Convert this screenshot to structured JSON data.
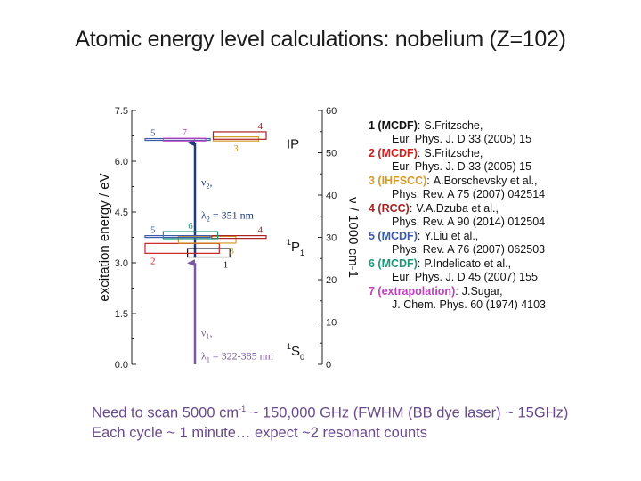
{
  "title": "Atomic energy level calculations: nobelium (Z=102)",
  "chart_data": {
    "type": "energy-level-diagram",
    "ylabel_left": "excitation energy / eV",
    "ylabel_right": "ν / 1000 cm-1",
    "ylim_left": [
      0,
      7.5
    ],
    "ylim_right": [
      0,
      60
    ],
    "left_ticks": [
      "0.0",
      "1.5",
      "3.0",
      "4.5",
      "6.0",
      "7.5"
    ],
    "right_ticks": [
      "0",
      "10",
      "20",
      "30",
      "40",
      "50",
      "60"
    ],
    "states": [
      {
        "label": "1S0",
        "main": "S",
        "sup": "1",
        "sub": "0",
        "energy_eV": 0.0
      },
      {
        "label": "1P1",
        "main": "P",
        "sup": "1",
        "sub": "1",
        "energy_eV": 3.5
      },
      {
        "label": "IP",
        "main": "IP",
        "sup": "",
        "sub": "",
        "energy_eV": 6.65
      }
    ],
    "transitions": [
      {
        "name": "ν1",
        "base": "ν",
        "sub": "1",
        "wl_label": "λ1 = 322-385 nm",
        "wl_base": "λ",
        "wl_value": " = 322-385 nm",
        "from_eV": 0.0,
        "to_eV": 3.1,
        "color": "#7a5a9c"
      },
      {
        "name": "ν2",
        "base": "ν",
        "sub": "2",
        "wl_label": "λ2 = 351 nm",
        "wl_base": "λ",
        "wl_value": " = 351 nm",
        "from_eV": 3.1,
        "to_eV": 6.65,
        "color": "#1f3a7a"
      }
    ],
    "p1_calcs": [
      {
        "id": "1",
        "color": "#111111",
        "e_low": 3.17,
        "e_high": 3.42,
        "x0": 2.8,
        "x1": 5.6,
        "label_pos": "below-right"
      },
      {
        "id": "2",
        "color": "#cc2222",
        "e_low": 3.28,
        "e_high": 3.57,
        "x0": 0.0,
        "x1": 4.9,
        "label_pos": "below-left"
      },
      {
        "id": "3",
        "color": "#d49a2a",
        "e_low": 3.58,
        "e_high": 3.78,
        "x0": 2.2,
        "x1": 6.0,
        "label_pos": "below-right"
      },
      {
        "id": "4",
        "color": "#aa2222",
        "e_low": 3.72,
        "e_high": 3.8,
        "x0": 4.4,
        "x1": 8.0,
        "label_pos": "above-right"
      },
      {
        "id": "5",
        "color": "#3a5aaa",
        "e_low": 3.78,
        "e_high": 3.8,
        "x0": 0.0,
        "x1": 4.3,
        "label_pos": "above-left"
      },
      {
        "id": "6",
        "color": "#20967a",
        "e_low": 3.71,
        "e_high": 3.92,
        "x0": 1.2,
        "x1": 4.8,
        "label_pos": "above-mid"
      }
    ],
    "ip_calcs": [
      {
        "id": "3",
        "color": "#d49a2a",
        "e_low": 6.6,
        "e_high": 6.72,
        "x0": 4.5,
        "x1": 7.5,
        "label_pos": "below-mid"
      },
      {
        "id": "4",
        "color": "#aa2222",
        "e_low": 6.65,
        "e_high": 6.87,
        "x0": 4.5,
        "x1": 8.0,
        "label_pos": "above-right"
      },
      {
        "id": "5",
        "color": "#3a5aaa",
        "e_low": 6.65,
        "e_high": 6.67,
        "x0": 0.0,
        "x1": 4.3,
        "label_pos": "above-left"
      },
      {
        "id": "7",
        "color": "#c040c0",
        "e_low": 6.6,
        "e_high": 6.68,
        "x0": 1.2,
        "x1": 4.0,
        "label_pos": "above-mid"
      }
    ]
  },
  "references": [
    {
      "tag": "1 (MCDF)",
      "color": "#111111",
      "author": "S.Fritzsche,",
      "journal": "Eur. Phys. J. D 33 (2005) 15"
    },
    {
      "tag": "2 (MCDF)",
      "color": "#cc2222",
      "author": "S.Fritzsche,",
      "journal": "Eur. Phys. J. D 33 (2005) 15"
    },
    {
      "tag": "3 (IHFSCC)",
      "color": "#d49a2a",
      "author": "A.Borschevsky et al.,",
      "journal": "Phys. Rev. A 75 (2007) 042514"
    },
    {
      "tag": "4 (RCC)",
      "color": "#aa2222",
      "author": "V.A.Dzuba et al.,",
      "journal": "Phys. Rev. A 90 (2014) 012504"
    },
    {
      "tag": "5 (MCDF)",
      "color": "#3a5aaa",
      "author": "Y.Liu et al.,",
      "journal": "Phys. Rev. A 76 (2007) 062503"
    },
    {
      "tag": "6 (MCDF)",
      "color": "#20967a",
      "author": "P.Indelicato et al.,",
      "journal": "Eur. Phys. J. D 45 (2007) 155"
    },
    {
      "tag": "7 (extrapolation)",
      "color": "#c040c0",
      "author": "J.Sugar,",
      "journal": "J. Chem. Phys. 60 (1974) 4103"
    }
  ],
  "footer": {
    "line1_a": "Need to scan 5000 cm",
    "line1_sup": "-1",
    "line1_b": " ~ 150,000 GHz (FWHM (BB dye laser) ~ 15GHz)",
    "line2": "Each cycle ~ 1 minute… expect ~2 resonant counts"
  }
}
